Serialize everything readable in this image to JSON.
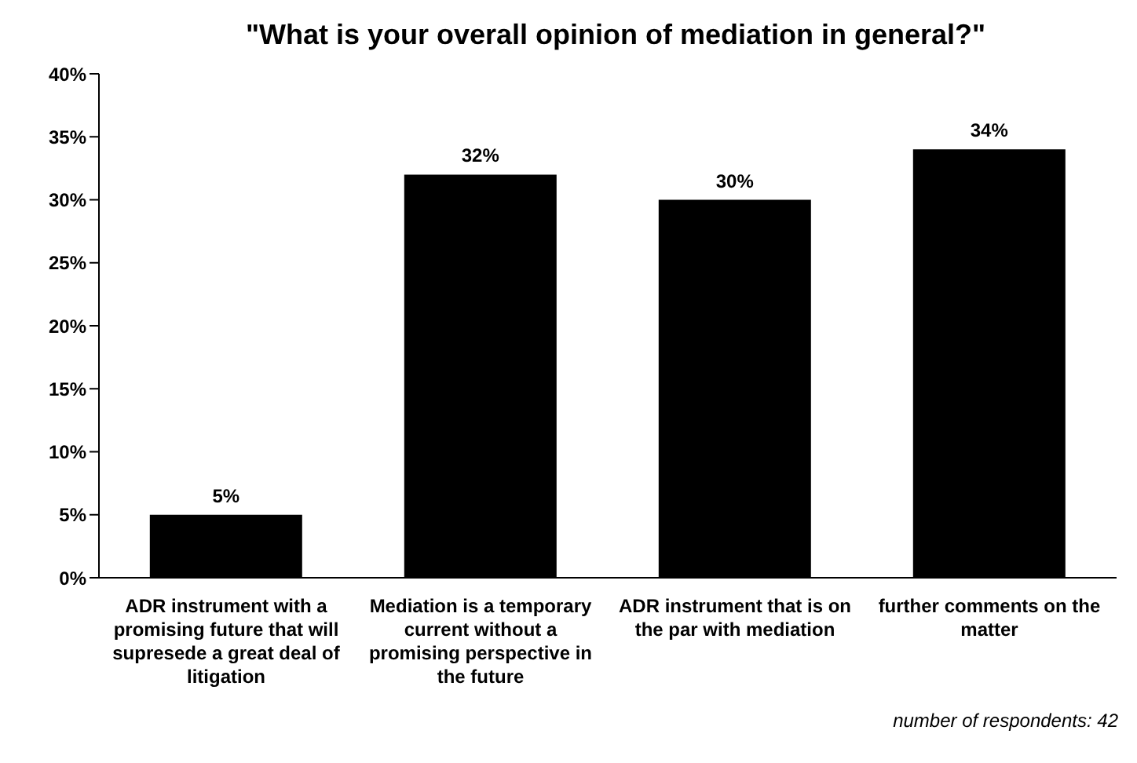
{
  "chart_data": {
    "type": "bar",
    "title": "\"What is your overall opinion of mediation in general?\"",
    "categories": [
      "ADR instrument with a promising future that will supresede a great deal of litigation",
      "Mediation is a temporary current without a promising perspective in the future",
      "ADR instrument that is on the par with mediation",
      "further comments on the matter"
    ],
    "values": [
      5,
      32,
      30,
      34
    ],
    "value_labels": [
      "5%",
      "32%",
      "30%",
      "34%"
    ],
    "color": "#000000",
    "ylim": [
      0,
      40
    ],
    "yticks": [
      {
        "value": 0,
        "label": "0%"
      },
      {
        "value": 5,
        "label": "5%"
      },
      {
        "value": 10,
        "label": "10%"
      },
      {
        "value": 15,
        "label": "15%"
      },
      {
        "value": 20,
        "label": "20%"
      },
      {
        "value": 25,
        "label": "25%"
      },
      {
        "value": 30,
        "label": "30%"
      },
      {
        "value": 35,
        "label": "35%"
      },
      {
        "value": 40,
        "label": "40%"
      }
    ],
    "grid": false,
    "legend": false,
    "annotations": [
      "number of respondents: 42"
    ]
  }
}
